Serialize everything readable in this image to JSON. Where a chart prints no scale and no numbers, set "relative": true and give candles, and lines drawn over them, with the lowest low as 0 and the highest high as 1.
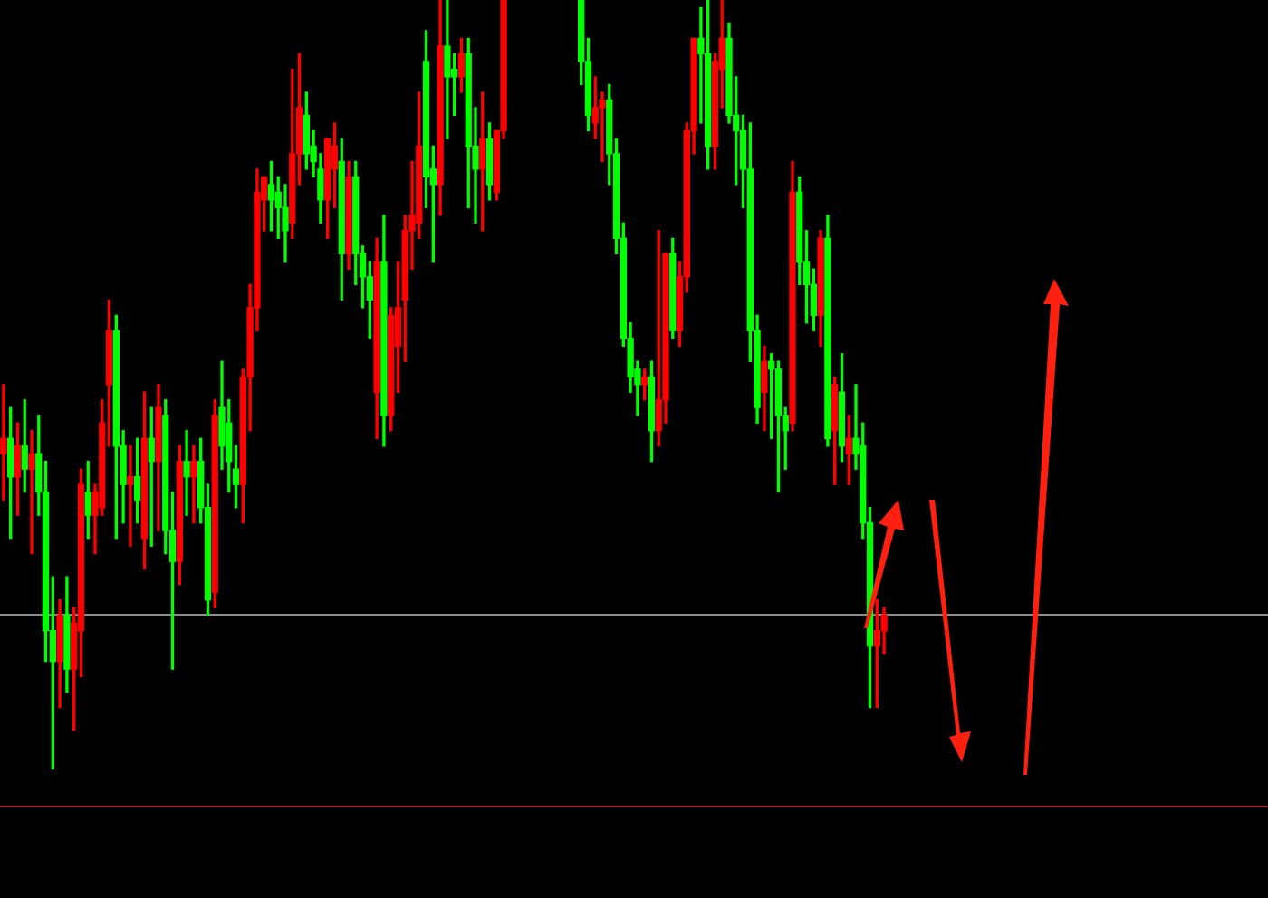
{
  "chart_data": {
    "type": "candlestick",
    "relative": true,
    "categories": [
      null,
      null,
      null,
      null,
      null,
      null,
      null,
      null,
      null,
      null,
      null,
      null,
      null,
      null,
      null,
      null,
      null,
      null,
      null,
      null,
      null,
      null,
      null,
      null,
      null,
      null,
      null,
      null,
      null,
      null,
      null,
      null,
      null,
      null,
      null,
      null,
      null,
      null,
      null,
      null,
      null,
      null,
      null,
      null,
      null,
      null,
      null,
      null,
      null,
      null,
      null,
      null,
      null,
      null,
      null,
      null,
      null,
      null,
      null,
      null,
      null,
      null,
      null,
      null,
      null,
      null,
      null,
      null,
      null,
      null,
      null,
      null,
      null,
      null,
      null,
      null,
      null,
      null,
      null,
      null,
      null,
      null,
      null,
      null,
      null,
      null,
      null,
      null,
      null,
      null,
      null,
      null,
      null,
      null,
      null,
      null,
      null,
      null,
      null,
      null,
      null,
      null,
      null,
      null,
      null,
      null,
      null,
      null,
      null,
      null,
      null,
      null,
      null,
      null,
      null,
      null,
      null,
      null,
      null,
      null,
      null,
      null,
      null,
      null,
      null,
      null,
      null,
      null,
      null,
      null,
      null,
      null,
      null,
      null,
      null,
      null,
      null,
      null,
      null,
      null,
      null,
      null,
      null,
      null,
      null,
      null,
      null,
      null,
      null,
      null,
      null,
      null,
      null,
      null,
      null,
      null,
      null,
      null,
      null,
      null,
      null,
      null,
      null,
      null,
      null,
      null,
      null,
      null,
      null,
      null,
      null,
      null,
      null,
      null,
      null,
      null,
      null,
      null,
      null,
      null
    ],
    "ohlc": [
      [
        0.41,
        0.5,
        0.35,
        0.43
      ],
      [
        0.43,
        0.47,
        0.3,
        0.38
      ],
      [
        0.38,
        0.45,
        0.33,
        0.42
      ],
      [
        0.42,
        0.48,
        0.36,
        0.39
      ],
      [
        0.39,
        0.44,
        0.28,
        0.41
      ],
      [
        0.41,
        0.46,
        0.33,
        0.36
      ],
      [
        0.36,
        0.4,
        0.14,
        0.18
      ],
      [
        0.18,
        0.25,
        0.0,
        0.14
      ],
      [
        0.14,
        0.22,
        0.08,
        0.2
      ],
      [
        0.2,
        0.25,
        0.1,
        0.13
      ],
      [
        0.13,
        0.21,
        0.05,
        0.19
      ],
      [
        0.18,
        0.39,
        0.12,
        0.37
      ],
      [
        0.36,
        0.4,
        0.3,
        0.33
      ],
      [
        0.33,
        0.37,
        0.28,
        0.36
      ],
      [
        0.34,
        0.48,
        0.33,
        0.45
      ],
      [
        0.5,
        0.61,
        0.42,
        0.57
      ],
      [
        0.57,
        0.59,
        0.3,
        0.42
      ],
      [
        0.42,
        0.44,
        0.32,
        0.37
      ],
      [
        0.37,
        0.42,
        0.29,
        0.38
      ],
      [
        0.38,
        0.43,
        0.32,
        0.35
      ],
      [
        0.3,
        0.49,
        0.26,
        0.43
      ],
      [
        0.43,
        0.47,
        0.29,
        0.4
      ],
      [
        0.4,
        0.5,
        0.31,
        0.47
      ],
      [
        0.46,
        0.48,
        0.28,
        0.31
      ],
      [
        0.31,
        0.36,
        0.13,
        0.27
      ],
      [
        0.27,
        0.42,
        0.24,
        0.4
      ],
      [
        0.4,
        0.44,
        0.33,
        0.38
      ],
      [
        0.38,
        0.42,
        0.32,
        0.4
      ],
      [
        0.4,
        0.43,
        0.32,
        0.34
      ],
      [
        0.34,
        0.37,
        0.2,
        0.22
      ],
      [
        0.23,
        0.48,
        0.21,
        0.46
      ],
      [
        0.47,
        0.53,
        0.39,
        0.42
      ],
      [
        0.45,
        0.48,
        0.36,
        0.4
      ],
      [
        0.39,
        0.42,
        0.34,
        0.37
      ],
      [
        0.37,
        0.52,
        0.32,
        0.51
      ],
      [
        0.51,
        0.63,
        0.44,
        0.6
      ],
      [
        0.6,
        0.78,
        0.57,
        0.75
      ],
      [
        0.74,
        0.77,
        0.7,
        0.77
      ],
      [
        0.76,
        0.79,
        0.7,
        0.74
      ],
      [
        0.75,
        0.77,
        0.69,
        0.73
      ],
      [
        0.73,
        0.76,
        0.66,
        0.7
      ],
      [
        0.71,
        0.91,
        0.69,
        0.8
      ],
      [
        0.8,
        0.93,
        0.76,
        0.86
      ],
      [
        0.85,
        0.88,
        0.78,
        0.8
      ],
      [
        0.81,
        0.83,
        0.77,
        0.79
      ],
      [
        0.78,
        0.8,
        0.71,
        0.74
      ],
      [
        0.74,
        0.82,
        0.69,
        0.82
      ],
      [
        0.78,
        0.84,
        0.73,
        0.81
      ],
      [
        0.79,
        0.82,
        0.61,
        0.67
      ],
      [
        0.67,
        0.79,
        0.65,
        0.77
      ],
      [
        0.77,
        0.79,
        0.63,
        0.67
      ],
      [
        0.67,
        0.68,
        0.6,
        0.64
      ],
      [
        0.64,
        0.66,
        0.56,
        0.61
      ],
      [
        0.49,
        0.69,
        0.43,
        0.66
      ],
      [
        0.66,
        0.72,
        0.42,
        0.46
      ],
      [
        0.46,
        0.6,
        0.44,
        0.59
      ],
      [
        0.55,
        0.66,
        0.49,
        0.6
      ],
      [
        0.61,
        0.72,
        0.53,
        0.7
      ],
      [
        0.7,
        0.79,
        0.65,
        0.72
      ],
      [
        0.71,
        0.88,
        0.69,
        0.81
      ],
      [
        0.92,
        0.96,
        0.73,
        0.77
      ],
      [
        0.78,
        0.81,
        0.66,
        0.76
      ],
      [
        0.76,
        1.0,
        0.72,
        0.94
      ],
      [
        0.94,
        1.0,
        0.82,
        0.9
      ],
      [
        0.91,
        0.93,
        0.85,
        0.9
      ],
      [
        0.9,
        0.95,
        0.88,
        0.93
      ],
      [
        0.93,
        0.95,
        0.73,
        0.81
      ],
      [
        0.81,
        0.86,
        0.71,
        0.78
      ],
      [
        0.78,
        0.88,
        0.7,
        0.82
      ],
      [
        0.82,
        0.84,
        0.74,
        0.76
      ],
      [
        0.75,
        0.83,
        0.74,
        0.83
      ],
      [
        0.83,
        1.0,
        0.82,
        1.0
      ],
      null,
      null,
      null,
      null,
      null,
      null,
      null,
      null,
      null,
      null,
      [
        1.0,
        1.0,
        0.89,
        0.92
      ],
      [
        0.92,
        0.95,
        0.83,
        0.85
      ],
      [
        0.84,
        0.9,
        0.82,
        0.86
      ],
      [
        0.86,
        0.88,
        0.79,
        0.87
      ],
      [
        0.87,
        0.89,
        0.76,
        0.8
      ],
      [
        0.8,
        0.82,
        0.67,
        0.69
      ],
      [
        0.69,
        0.71,
        0.55,
        0.56
      ],
      [
        0.56,
        0.58,
        0.49,
        0.51
      ],
      [
        0.52,
        0.53,
        0.46,
        0.5
      ],
      [
        0.5,
        0.52,
        0.48,
        0.51
      ],
      [
        0.51,
        0.53,
        0.4,
        0.44
      ],
      [
        0.44,
        0.7,
        0.42,
        0.48
      ],
      [
        0.48,
        0.67,
        0.45,
        0.67
      ],
      [
        0.67,
        0.69,
        0.56,
        0.57
      ],
      [
        0.57,
        0.66,
        0.55,
        0.64
      ],
      [
        0.64,
        0.84,
        0.62,
        0.83
      ],
      [
        0.83,
        0.95,
        0.8,
        0.95
      ],
      [
        0.95,
        0.99,
        0.84,
        0.93
      ],
      [
        0.93,
        1.0,
        0.78,
        0.81
      ],
      [
        0.81,
        0.93,
        0.78,
        0.92
      ],
      [
        0.91,
        1.0,
        0.86,
        0.95
      ],
      [
        0.95,
        0.97,
        0.84,
        0.85
      ],
      [
        0.85,
        0.9,
        0.76,
        0.83
      ],
      [
        0.83,
        0.85,
        0.73,
        0.78
      ],
      [
        0.78,
        0.84,
        0.53,
        0.57
      ],
      [
        0.57,
        0.59,
        0.45,
        0.47
      ],
      [
        0.49,
        0.55,
        0.44,
        0.53
      ],
      [
        0.53,
        0.54,
        0.43,
        0.52
      ],
      [
        0.52,
        0.53,
        0.36,
        0.46
      ],
      [
        0.46,
        0.47,
        0.39,
        0.44
      ],
      [
        0.45,
        0.79,
        0.44,
        0.75
      ],
      [
        0.75,
        0.77,
        0.63,
        0.66
      ],
      [
        0.66,
        0.7,
        0.58,
        0.63
      ],
      [
        0.63,
        0.65,
        0.57,
        0.59
      ],
      [
        0.59,
        0.7,
        0.55,
        0.69
      ],
      [
        0.69,
        0.72,
        0.42,
        0.43
      ],
      [
        0.44,
        0.51,
        0.37,
        0.5
      ],
      [
        0.49,
        0.54,
        0.4,
        0.42
      ],
      [
        0.41,
        0.46,
        0.37,
        0.43
      ],
      [
        0.43,
        0.5,
        0.39,
        0.41
      ],
      [
        0.42,
        0.45,
        0.3,
        0.32
      ],
      [
        0.32,
        0.34,
        0.08,
        0.16
      ],
      [
        0.16,
        0.22,
        0.08,
        0.18
      ],
      [
        0.18,
        0.21,
        0.15,
        0.2
      ],
      null,
      null,
      null,
      null,
      null,
      null,
      null,
      null,
      null,
      null,
      null,
      null,
      null,
      null,
      null,
      null,
      null,
      null,
      null,
      null,
      null,
      null,
      null,
      null,
      null,
      null,
      null,
      null,
      null,
      null,
      null,
      null,
      null,
      null,
      null,
      null,
      null,
      null,
      null,
      null,
      null,
      null,
      null,
      null,
      null,
      null,
      null,
      null,
      null,
      null,
      null,
      null,
      null,
      null
    ],
    "colors": [
      "#ff0000",
      "#00ff00",
      "#ff0000",
      "#00ff00",
      "#ff0000",
      "#00ff00",
      "#00ff00",
      "#00ff00",
      "#ff0000",
      "#00ff00",
      "#ff0000",
      "#ff0000",
      "#00ff00",
      "#ff0000",
      "#ff0000",
      "#ff0000",
      "#00ff00",
      "#00ff00",
      "#ff0000",
      "#00ff00",
      "#ff0000",
      "#00ff00",
      "#ff0000",
      "#00ff00",
      "#00ff00",
      "#ff0000",
      "#00ff00",
      "#ff0000",
      "#00ff00",
      "#00ff00",
      "#ff0000",
      "#00ff00",
      "#00ff00",
      "#00ff00",
      "#ff0000",
      "#ff0000",
      "#ff0000",
      "#ff0000",
      "#00ff00",
      "#00ff00",
      "#00ff00",
      "#ff0000",
      "#ff0000",
      "#00ff00",
      "#00ff00",
      "#00ff00",
      "#ff0000",
      "#ff0000",
      "#00ff00",
      "#ff0000",
      "#00ff00",
      "#00ff00",
      "#00ff00",
      "#ff0000",
      "#00ff00",
      "#ff0000",
      "#ff0000",
      "#ff0000",
      "#ff0000",
      "#ff0000",
      "#00ff00",
      "#00ff00",
      "#ff0000",
      "#00ff00",
      "#00ff00",
      "#ff0000",
      "#00ff00",
      "#00ff00",
      "#ff0000",
      "#00ff00",
      "#ff0000",
      "#ff0000",
      null,
      null,
      null,
      null,
      null,
      null,
      null,
      null,
      null,
      null,
      "#00ff00",
      "#00ff00",
      "#ff0000",
      "#ff0000",
      "#00ff00",
      "#00ff00",
      "#00ff00",
      "#00ff00",
      "#00ff00",
      "#ff0000",
      "#00ff00",
      "#ff0000",
      "#ff0000",
      "#00ff00",
      "#ff0000",
      "#ff0000",
      "#ff0000",
      "#00ff00",
      "#00ff00",
      "#ff0000",
      "#ff0000",
      "#00ff00",
      "#00ff00",
      "#00ff00",
      "#00ff00",
      "#00ff00",
      "#ff0000",
      "#00ff00",
      "#00ff00",
      "#00ff00",
      "#ff0000",
      "#00ff00",
      "#00ff00",
      "#00ff00",
      "#ff0000",
      "#00ff00",
      "#ff0000",
      "#00ff00",
      "#ff0000",
      "#00ff00",
      "#00ff00",
      "#00ff00",
      "#ff0000",
      "#ff0000",
      null,
      null,
      null,
      null,
      null,
      null,
      null,
      null,
      null,
      null,
      null,
      null,
      null,
      null,
      null,
      null,
      null,
      null,
      null,
      null,
      null,
      null,
      null,
      null,
      null,
      null,
      null,
      null,
      null,
      null,
      null,
      null,
      null,
      null,
      null,
      null,
      null,
      null,
      null,
      null,
      null,
      null,
      null,
      null,
      null,
      null,
      null,
      null,
      null,
      null,
      null,
      null,
      null,
      null
    ],
    "ref_lines": [
      {
        "axis": "y",
        "value": 0.2,
        "color": "#8c8c8c"
      },
      {
        "axis": "y",
        "value": -0.05,
        "color": "#a02a1c"
      }
    ]
  }
}
